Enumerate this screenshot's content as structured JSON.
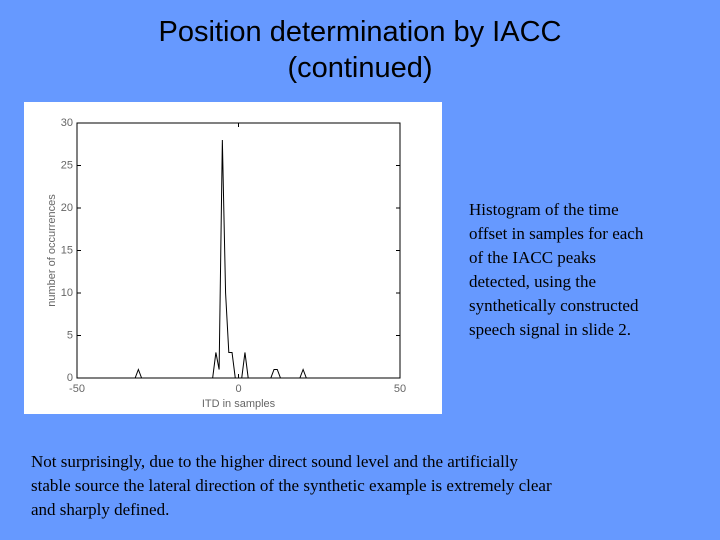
{
  "slide": {
    "title": [
      "Position determination by IACC",
      "(continued)"
    ],
    "caption": [
      "Histogram of the time",
      "offset in samples for each",
      "of the IACC peaks",
      "detected, using the",
      "synthetically constructed",
      "speech signal in slide 2."
    ],
    "body": [
      "Not surprisingly, due to the higher direct sound level and the artificially",
      "stable source the lateral direction of the synthetic example is extremely clear",
      "and sharply defined."
    ]
  },
  "chart_data": {
    "type": "line",
    "x_label": "ITD in samples",
    "y_label": "number of occurrences",
    "x": [
      -50,
      -32,
      -31,
      -30,
      -8,
      -7,
      -6,
      -5,
      -4,
      -3,
      -2,
      -1,
      1,
      2,
      3,
      10,
      11,
      12,
      13,
      19,
      20,
      21,
      50
    ],
    "values": [
      0,
      0,
      1,
      0,
      0,
      3,
      1,
      28,
      10,
      3,
      3,
      0,
      0,
      3,
      0,
      0,
      1,
      1,
      0,
      0,
      1,
      0,
      0
    ],
    "color": "#000000",
    "xlim": [
      -50,
      50
    ],
    "xticks": [
      -50,
      0,
      50
    ],
    "ylim": [
      0,
      30
    ],
    "yticks": [
      0,
      5,
      10,
      15,
      20,
      25,
      30
    ]
  }
}
